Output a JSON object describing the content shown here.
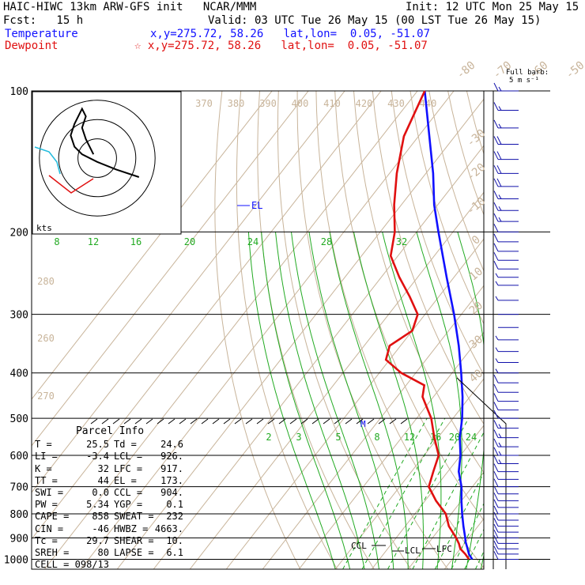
{
  "header": {
    "title": "HAIC-HIWC 13km ARW-GFS init   NCAR/MMM",
    "init": "Init: 12 UTC Mon 25 May 15",
    "fcst": "Fcst:   15 h",
    "valid": "Valid: 03 UTC Tue 26 May 15 (00 LST Tue 26 May 15)",
    "temp_label": "Temperature",
    "temp_coords": "x,y=275.72, 58.26   lat,lon=  0.05, -51.07",
    "dew_label": "Dewpoint",
    "dew_coords": "☆ x,y=275.72, 58.26   lat,lon=  0.05, -51.07"
  },
  "barb_legend": {
    "line1": "Full barb:",
    "line2": "5 m s⁻¹"
  },
  "hodograph": {
    "units": "kts"
  },
  "chart_data": {
    "type": "line",
    "subtype": "skew-T log-P sounding",
    "pressure_axis": {
      "ticks": [
        100,
        200,
        300,
        400,
        500,
        600,
        700,
        800,
        900,
        1000
      ],
      "scale": "log"
    },
    "isotherm_labels": [
      -80,
      -70,
      -60,
      -50,
      -40,
      -30,
      -20,
      -10,
      0,
      10,
      20,
      30,
      40
    ],
    "dry_adiabat_labels": [
      260,
      270,
      280,
      370,
      380,
      390,
      400,
      410,
      420,
      430,
      440
    ],
    "mixing_ratio_labels_upper": [
      8,
      12,
      16,
      20,
      24,
      28,
      32
    ],
    "mixing_ratio_labels_lower": [
      2,
      3,
      5,
      8,
      12,
      16,
      20,
      24
    ],
    "series": [
      {
        "name": "Temperature",
        "color": "#1010ff",
        "points": [
          [
            1000,
            25.5
          ],
          [
            975,
            23.5
          ],
          [
            950,
            22.0
          ],
          [
            917,
            19.9
          ],
          [
            900,
            19.0
          ],
          [
            850,
            16.0
          ],
          [
            800,
            13.0
          ],
          [
            750,
            10.0
          ],
          [
            700,
            7.0
          ],
          [
            650,
            3.0
          ],
          [
            600,
            0.0
          ],
          [
            550,
            -4.0
          ],
          [
            500,
            -7.5
          ],
          [
            450,
            -12.0
          ],
          [
            400,
            -17.5
          ],
          [
            350,
            -24.0
          ],
          [
            300,
            -32.0
          ],
          [
            250,
            -42.0
          ],
          [
            200,
            -54.0
          ],
          [
            175,
            -61.0
          ],
          [
            150,
            -68.0
          ],
          [
            125,
            -77.0
          ],
          [
            100,
            -88.0
          ]
        ]
      },
      {
        "name": "Dewpoint",
        "color": "#e01010",
        "points": [
          [
            1000,
            24.6
          ],
          [
            975,
            22.5
          ],
          [
            950,
            20.0
          ],
          [
            926,
            18.5
          ],
          [
            900,
            16.5
          ],
          [
            850,
            12.0
          ],
          [
            800,
            8.5
          ],
          [
            750,
            3.0
          ],
          [
            700,
            -2.0
          ],
          [
            650,
            -4.0
          ],
          [
            600,
            -6.0
          ],
          [
            550,
            -11.0
          ],
          [
            500,
            -16.0
          ],
          [
            450,
            -23.0
          ],
          [
            425,
            -25.0
          ],
          [
            400,
            -34.0
          ],
          [
            375,
            -41.0
          ],
          [
            350,
            -43.0
          ],
          [
            325,
            -40.0
          ],
          [
            300,
            -42.0
          ],
          [
            275,
            -48.0
          ],
          [
            250,
            -55.0
          ],
          [
            225,
            -62.0
          ],
          [
            200,
            -66.0
          ],
          [
            175,
            -72.0
          ],
          [
            150,
            -78.0
          ],
          [
            125,
            -84.0
          ],
          [
            100,
            -88.0
          ]
        ]
      },
      {
        "name": "Hodograph",
        "color": "#000000",
        "units": "kts",
        "points": [
          [
            22,
            -10
          ],
          [
            10,
            -6
          ],
          [
            0,
            -2
          ],
          [
            -8,
            2
          ],
          [
            -12,
            6
          ],
          [
            -14,
            12
          ],
          [
            -12,
            18
          ],
          [
            -10,
            22
          ],
          [
            -8,
            26
          ],
          [
            -6,
            22
          ],
          [
            -8,
            16
          ],
          [
            -6,
            10
          ],
          [
            -4,
            6
          ],
          [
            -2,
            2
          ]
        ]
      }
    ],
    "annotations": [
      "EL",
      "CCL",
      "LCL",
      "LFC",
      "M"
    ],
    "wind_barbs": {
      "levels": [
        100,
        110,
        120,
        130,
        140,
        150,
        160,
        170,
        180,
        190,
        200,
        210,
        220,
        230,
        240,
        250,
        260,
        280,
        300,
        320,
        340,
        360,
        380,
        400,
        420,
        440,
        460,
        480,
        500,
        525,
        550,
        575,
        600,
        625,
        650,
        675,
        700,
        725,
        750,
        775,
        800,
        825,
        850,
        875,
        900,
        925,
        950,
        975,
        1000
      ],
      "speeds_ms": [
        8,
        9,
        9,
        10,
        10,
        10,
        10,
        9,
        8,
        8,
        7,
        6,
        5,
        5,
        5,
        4,
        3,
        3,
        2,
        2,
        3,
        3,
        4,
        4,
        5,
        5,
        6,
        7,
        7,
        8,
        8,
        8,
        8,
        8,
        7,
        7,
        7,
        6,
        6,
        6,
        6,
        6,
        6,
        5,
        6,
        7,
        7,
        7,
        6
      ]
    }
  },
  "parcel_info": {
    "title": "Parcel Info",
    "rows": [
      [
        "T",
        "25.5",
        "Td",
        "24.6"
      ],
      [
        "LI",
        "-3.4",
        "LCL",
        "926."
      ],
      [
        "K",
        "32",
        "LFC",
        "917."
      ],
      [
        "TT",
        "44",
        "EL",
        "173."
      ],
      [
        "SWI",
        "0.0",
        "CCL",
        "904."
      ],
      [
        "PW",
        "5.34",
        "YGP",
        "0.1"
      ],
      [
        "CAPE",
        "858",
        "SWEAT",
        "232"
      ],
      [
        "CIN",
        "-46",
        "HWBZ",
        "4663."
      ],
      [
        "Tc",
        "29.7",
        "SHEAR",
        "10."
      ],
      [
        "SREH",
        "80",
        "LAPSE",
        "6.1"
      ],
      [
        "CELL",
        "098/13",
        "",
        ""
      ]
    ]
  }
}
